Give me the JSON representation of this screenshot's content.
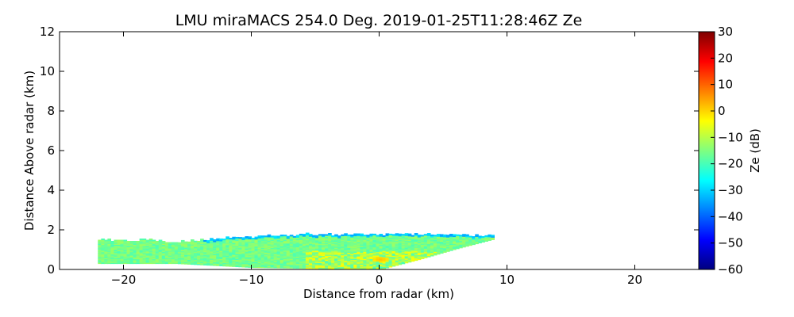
{
  "chart_data": {
    "type": "heatmap",
    "title": "LMU miraMACS 254.0 Deg. 2019-01-25T11:28:46Z  Ze",
    "xlabel": "Distance from radar (km)",
    "ylabel": "Distance Above radar  (km)",
    "xlim": [
      -25,
      25
    ],
    "ylim": [
      0,
      12
    ],
    "xticks": [
      -20,
      -10,
      0,
      10,
      20
    ],
    "xtick_labels": [
      "−20",
      "−10",
      "0",
      "10",
      "20"
    ],
    "yticks": [
      0,
      2,
      4,
      6,
      8,
      10,
      12
    ],
    "ytick_labels": [
      "0",
      "2",
      "4",
      "6",
      "8",
      "10",
      "12"
    ],
    "grid": false,
    "colorbar": {
      "label": "Ze (dB)",
      "range": [
        -60,
        30
      ],
      "colormap": "jet",
      "ticks": [
        30,
        20,
        10,
        0,
        -10,
        -20,
        -30,
        -40,
        -50,
        -60
      ],
      "tick_labels": [
        "30",
        "20",
        "10",
        "0",
        "−10",
        "−20",
        "−30",
        "−40",
        "−50",
        "−60"
      ]
    },
    "echo_region": {
      "x_range": [
        -22,
        9
      ],
      "top_profile": [
        [
          -22,
          1.5
        ],
        [
          -20,
          1.45
        ],
        [
          -18.5,
          1.5
        ],
        [
          -17,
          1.45
        ],
        [
          -16.5,
          1.3
        ],
        [
          -15.5,
          1.4
        ],
        [
          -14,
          1.45
        ],
        [
          -12,
          1.6
        ],
        [
          -10,
          1.65
        ],
        [
          -8,
          1.7
        ],
        [
          -6,
          1.75
        ],
        [
          -2,
          1.75
        ],
        [
          2,
          1.75
        ],
        [
          6,
          1.75
        ],
        [
          9,
          1.65
        ]
      ],
      "base_profile": [
        [
          -22,
          0.3
        ],
        [
          -16,
          0.3
        ],
        [
          -10,
          0.1
        ],
        [
          -5,
          0.05
        ],
        [
          0,
          0.0
        ],
        [
          3,
          0.5
        ],
        [
          6,
          1.05
        ],
        [
          9,
          1.55
        ]
      ],
      "typical_ze": [
        -20,
        -12
      ],
      "top_edge_ze": [
        -35,
        -28
      ],
      "core_ze": [
        -10,
        -3
      ],
      "max_ze_point": {
        "x": 0,
        "y": 0.5,
        "ze": 2
      }
    }
  }
}
